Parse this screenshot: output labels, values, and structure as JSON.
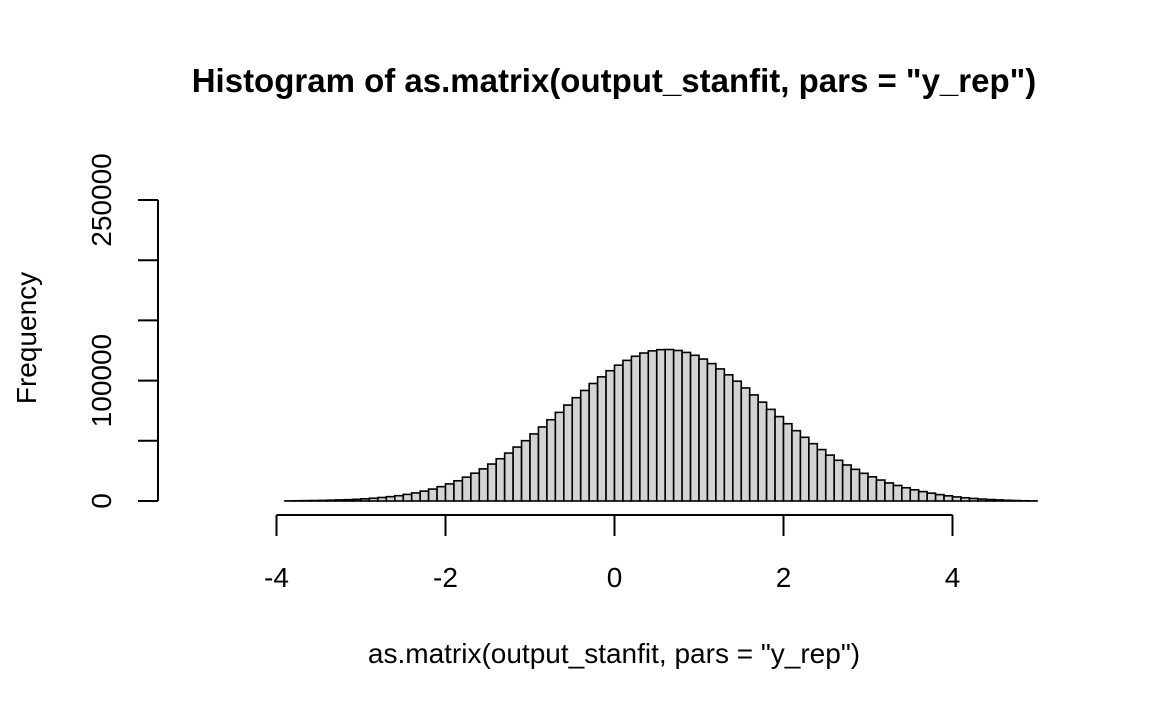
{
  "chart_data": {
    "type": "bar",
    "title": "Histogram of as.matrix(output_stanfit, pars = \"y_rep\")",
    "xlabel": "as.matrix(output_stanfit, pars = \"y_rep\")",
    "ylabel": "Frequency",
    "xlim": [
      -5,
      5
    ],
    "ylim": [
      0,
      250000
    ],
    "x_ticks": [
      -4,
      -2,
      0,
      2,
      4
    ],
    "x_tick_labels": [
      "-4",
      "-2",
      "0",
      "2",
      "4"
    ],
    "y_ticks": [
      0,
      50000,
      100000,
      150000,
      200000,
      250000
    ],
    "y_tick_labels": [
      "0",
      "",
      "100000",
      "",
      "",
      "250000"
    ],
    "bin_width": 0.1,
    "bin_start": -5,
    "bar_color": "#d3d3d3",
    "border_color": "#000000",
    "values": [
      0,
      0,
      0,
      0,
      0,
      0,
      0,
      0,
      0,
      0,
      0,
      100,
      200,
      300,
      400,
      500,
      700,
      900,
      1100,
      1400,
      1800,
      2300,
      2900,
      3600,
      4400,
      5500,
      6700,
      8200,
      9900,
      11900,
      14200,
      16800,
      19800,
      23100,
      26700,
      30700,
      35100,
      39800,
      44800,
      50100,
      55700,
      61500,
      67500,
      73600,
      79700,
      85800,
      91800,
      97600,
      103100,
      108200,
      112800,
      116800,
      120200,
      122900,
      124700,
      125700,
      125800,
      125000,
      123400,
      121000,
      117900,
      114100,
      109700,
      104800,
      99500,
      93900,
      88100,
      82100,
      76100,
      70100,
      64200,
      58400,
      52900,
      47600,
      42700,
      38100,
      33800,
      29900,
      26300,
      23000,
      20100,
      17400,
      15000,
      12900,
      11000,
      9300,
      7800,
      6500,
      5300,
      4300,
      3400,
      2700,
      2100,
      1600,
      1200,
      900,
      600,
      400,
      200,
      100
    ]
  }
}
